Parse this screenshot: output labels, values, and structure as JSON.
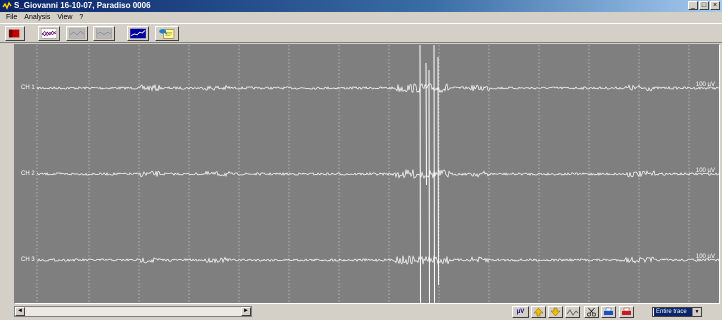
{
  "window": {
    "title": "S_Giovanni 16-10-07, Paradiso 0006",
    "controls": {
      "minimize": "_",
      "maximize": "□",
      "close": "×"
    }
  },
  "menu": [
    "File",
    "Analysis",
    "View",
    "?"
  ],
  "toolbar": {
    "tools": [
      {
        "name": "record-icon"
      },
      {
        "name": "overlay-traces-icon"
      },
      {
        "name": "trace-disabled-icon"
      },
      {
        "name": "trace-disabled-icon"
      },
      {
        "name": "single-trace-icon"
      },
      {
        "name": "export-icon"
      }
    ]
  },
  "plot": {
    "channels": [
      {
        "label": "CH 1",
        "scale": "100 µV"
      },
      {
        "label": "CH 2",
        "scale": "100 µV"
      },
      {
        "label": "CH 3",
        "scale": "100 µV"
      }
    ],
    "colors": {
      "background": "#7f7f7f",
      "trace": "#ffffff",
      "grid": "#cfcfcf"
    }
  },
  "bottom": {
    "unit_button": "µV",
    "scroll_left": "◄",
    "scroll_right": "►",
    "view_select": "Entire trace",
    "select_arrow": "▼"
  }
}
